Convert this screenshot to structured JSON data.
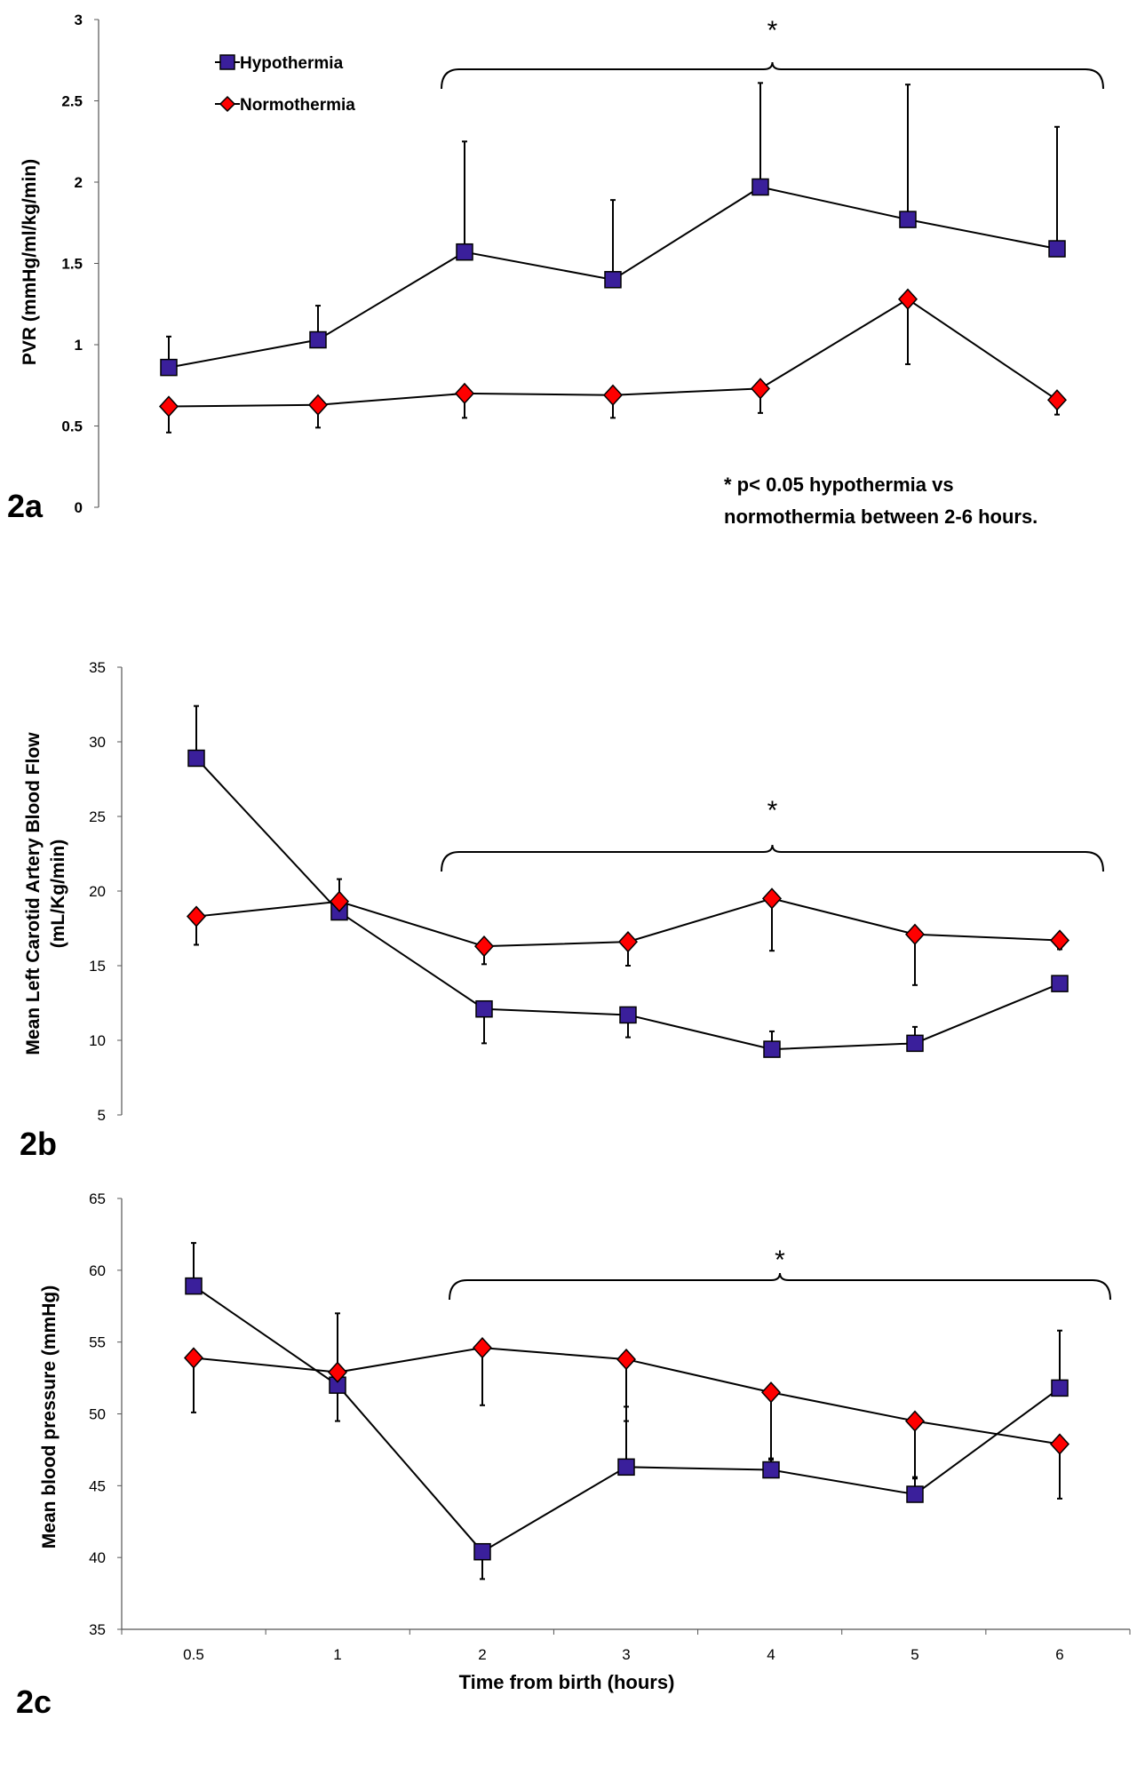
{
  "colors": {
    "hypothermia": "#3a1f9b",
    "normothermia": "#ff0000",
    "ink": "#000000"
  },
  "legend": {
    "hypothermia": "Hypothermia",
    "normothermia": "Normothermia"
  },
  "x_label": "Time from birth (hours)",
  "chart_data": [
    {
      "id": "2a",
      "type": "line",
      "panel_label": "2a",
      "ylabel": "PVR (mmHg/ml/kg/min)",
      "ylim": [
        0,
        3
      ],
      "yticks": [
        "0",
        "0.5",
        "1",
        "1.5",
        "2",
        "2.5",
        "3"
      ],
      "yticks_bold": true,
      "categories": [
        "0.5",
        "1",
        "2",
        "3",
        "4",
        "5",
        "6"
      ],
      "show_xticks": false,
      "series": [
        {
          "name": "Hypothermia",
          "values": [
            0.86,
            1.03,
            1.57,
            1.4,
            1.97,
            1.77,
            1.59
          ],
          "err": [
            0.19,
            0.21,
            0.68,
            0.49,
            0.64,
            0.83,
            0.75
          ],
          "err_dir": "up"
        },
        {
          "name": "Normothermia",
          "values": [
            0.62,
            0.63,
            0.7,
            0.69,
            0.73,
            1.28,
            0.66
          ],
          "err": [
            0.16,
            0.14,
            0.15,
            0.14,
            0.15,
            0.4,
            0.09
          ],
          "err_dir": "down"
        }
      ],
      "annotation": {
        "symbol": "*",
        "from": "2",
        "to": "6"
      },
      "note": [
        "* p< 0.05 hypothermia vs",
        "normothermia between 2-6 hours."
      ]
    },
    {
      "id": "2b",
      "type": "line",
      "panel_label": "2b",
      "ylabel": [
        "Mean Left Carotid Artery Blood Flow",
        "(mL/Kg/min)"
      ],
      "ylim": [
        5,
        35
      ],
      "yticks": [
        "5",
        "10",
        "15",
        "20",
        "25",
        "30",
        "35"
      ],
      "categories": [
        "0.5",
        "1",
        "2",
        "3",
        "4",
        "5",
        "6"
      ],
      "show_xticks": false,
      "series": [
        {
          "name": "Hypothermia",
          "values": [
            28.9,
            18.6,
            12.1,
            11.7,
            9.4,
            9.8,
            13.8
          ],
          "err": [
            3.5,
            2.2,
            2.3,
            1.5,
            1.2,
            1.1,
            0
          ],
          "err_dir": "mixed_b"
        },
        {
          "name": "Normothermia",
          "values": [
            18.3,
            19.3,
            16.3,
            16.6,
            19.5,
            17.1,
            16.7
          ],
          "err": [
            1.9,
            1.2,
            1.2,
            1.6,
            3.5,
            3.4,
            0.6
          ],
          "err_dir": "mixed_b"
        }
      ],
      "annotation": {
        "symbol": "*",
        "from": "2",
        "to": "6"
      }
    },
    {
      "id": "2c",
      "type": "line",
      "panel_label": "2c",
      "ylabel": "Mean blood pressure (mmHg)",
      "ylim": [
        35,
        65
      ],
      "yticks": [
        "35",
        "40",
        "45",
        "50",
        "55",
        "60",
        "65"
      ],
      "categories": [
        "0.5",
        "1",
        "2",
        "3",
        "4",
        "5",
        "6"
      ],
      "show_xticks": true,
      "series": [
        {
          "name": "Hypothermia",
          "values": [
            58.9,
            52.0,
            40.4,
            46.3,
            46.1,
            44.4,
            51.8
          ],
          "err": [
            3.0,
            5.0,
            1.9,
            4.2,
            0.8,
            1.2,
            4.0
          ],
          "err_dir": "mixed_c"
        },
        {
          "name": "Normothermia",
          "values": [
            53.9,
            52.9,
            54.6,
            53.8,
            51.5,
            49.5,
            47.9
          ],
          "err": [
            3.8,
            3.4,
            4.0,
            4.3,
            4.7,
            4.0,
            3.8
          ],
          "err_dir": "mixed_c"
        }
      ],
      "annotation": {
        "symbol": "*",
        "from": "2",
        "to": "6"
      }
    }
  ]
}
